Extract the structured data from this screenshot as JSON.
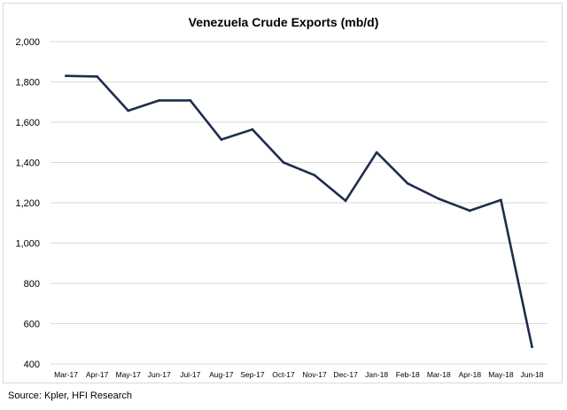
{
  "chart_data": {
    "type": "line",
    "title": "Venezuela Crude Exports (mb/d)",
    "categories": [
      "Mar-17",
      "Apr-17",
      "May-17",
      "Jun-17",
      "Jul-17",
      "Aug-17",
      "Sep-17",
      "Oct-17",
      "Nov-17",
      "Dec-17",
      "Jan-18",
      "Feb-18",
      "Mar-18",
      "Apr-18",
      "May-18",
      "Jun-18"
    ],
    "series": [
      {
        "values": [
          1830,
          1827,
          1657,
          1708,
          1708,
          1514,
          1564,
          1400,
          1337,
          1210,
          1450,
          1296,
          1220,
          1161,
          1214,
          485
        ]
      }
    ],
    "ylim": [
      400,
      2000
    ],
    "yticks": [
      400,
      600,
      800,
      1000,
      1200,
      1400,
      1600,
      1800,
      2000
    ],
    "ytick_labels": [
      "400",
      "600",
      "800",
      "1,000",
      "1,200",
      "1,400",
      "1,600",
      "1,800",
      "2,000"
    ],
    "grid": true,
    "line_color": "#1f2d4e",
    "grid_color": "#d9d9d9"
  },
  "source": "Source: Kpler, HFI Research"
}
